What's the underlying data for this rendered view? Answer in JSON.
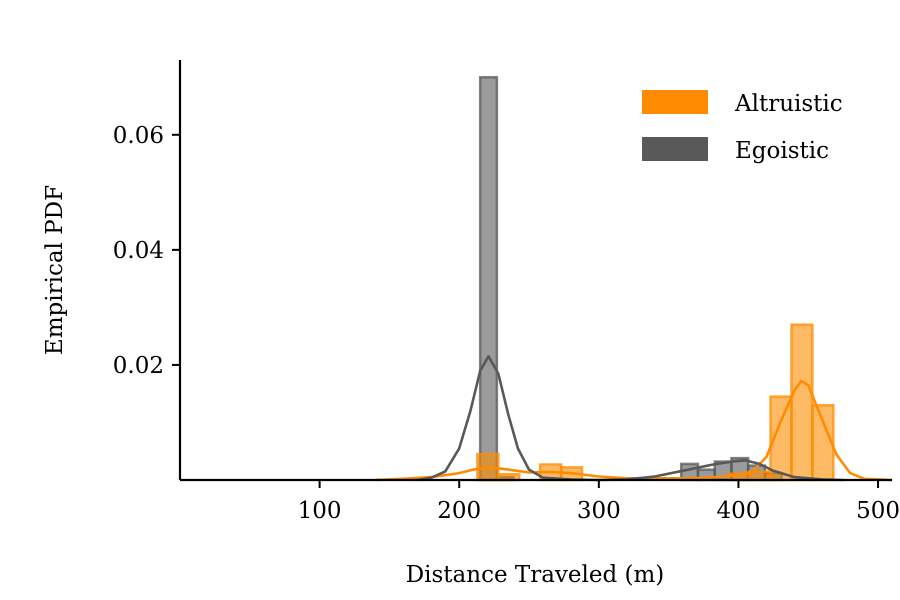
{
  "chart_data": {
    "type": "bar",
    "xlabel": "Distance Traveled (m)",
    "ylabel": "Empirical PDF",
    "xlim": [
      0,
      510
    ],
    "ylim": [
      0,
      0.073
    ],
    "xticks": [
      "100",
      "200",
      "300",
      "400",
      "500"
    ],
    "yticks": [
      "0.02",
      "0.04",
      "0.06"
    ],
    "grid": false,
    "legend_position": "top-right",
    "series": [
      {
        "name": "Altruistic",
        "color": "#ff8c00",
        "histogram": [
          {
            "x0": 213,
            "x1": 228,
            "value": 0.0045
          },
          {
            "x0": 228,
            "x1": 243,
            "value": 0.001
          },
          {
            "x0": 258,
            "x1": 273,
            "value": 0.0027
          },
          {
            "x0": 273,
            "x1": 288,
            "value": 0.0022
          },
          {
            "x0": 393,
            "x1": 408,
            "value": 0.0011
          },
          {
            "x0": 408,
            "x1": 423,
            "value": 0.0015
          },
          {
            "x0": 423,
            "x1": 438,
            "value": 0.0145
          },
          {
            "x0": 438,
            "x1": 453,
            "value": 0.027
          },
          {
            "x0": 453,
            "x1": 468,
            "value": 0.013
          }
        ],
        "kde": [
          [
            140,
            0
          ],
          [
            160,
            0.0002
          ],
          [
            180,
            0.0005
          ],
          [
            200,
            0.0012
          ],
          [
            210,
            0.0018
          ],
          [
            222,
            0.0022
          ],
          [
            235,
            0.0018
          ],
          [
            250,
            0.0013
          ],
          [
            265,
            0.0014
          ],
          [
            280,
            0.0012
          ],
          [
            300,
            0.0006
          ],
          [
            320,
            0.0003
          ],
          [
            340,
            0.0003
          ],
          [
            360,
            0.0003
          ],
          [
            380,
            0.0004
          ],
          [
            400,
            0.0009
          ],
          [
            410,
            0.0015
          ],
          [
            420,
            0.004
          ],
          [
            430,
            0.01
          ],
          [
            440,
            0.0155
          ],
          [
            445,
            0.0172
          ],
          [
            450,
            0.0165
          ],
          [
            460,
            0.0105
          ],
          [
            470,
            0.0045
          ],
          [
            480,
            0.0012
          ],
          [
            490,
            0.0002
          ],
          [
            510,
            0
          ]
        ]
      },
      {
        "name": "Egoistic",
        "color": "#595959",
        "histogram": [
          {
            "x0": 215,
            "x1": 227,
            "value": 0.07
          },
          {
            "x0": 227,
            "x1": 239,
            "value": 0.0005
          },
          {
            "x0": 359,
            "x1": 371,
            "value": 0.0028
          },
          {
            "x0": 371,
            "x1": 383,
            "value": 0.0018
          },
          {
            "x0": 383,
            "x1": 395,
            "value": 0.0032
          },
          {
            "x0": 395,
            "x1": 407,
            "value": 0.0038
          },
          {
            "x0": 407,
            "x1": 419,
            "value": 0.0025
          },
          {
            "x0": 419,
            "x1": 431,
            "value": 0.0012
          }
        ],
        "kde": [
          [
            170,
            0
          ],
          [
            180,
            0.0004
          ],
          [
            190,
            0.0015
          ],
          [
            200,
            0.0055
          ],
          [
            208,
            0.012
          ],
          [
            215,
            0.019
          ],
          [
            221,
            0.0215
          ],
          [
            228,
            0.0185
          ],
          [
            235,
            0.0115
          ],
          [
            242,
            0.0055
          ],
          [
            250,
            0.0018
          ],
          [
            260,
            0.0004
          ],
          [
            280,
            0.0001
          ],
          [
            300,
            0
          ],
          [
            320,
            0.0001
          ],
          [
            340,
            0.0006
          ],
          [
            360,
            0.0016
          ],
          [
            380,
            0.0026
          ],
          [
            395,
            0.0032
          ],
          [
            405,
            0.0034
          ],
          [
            415,
            0.0028
          ],
          [
            425,
            0.0016
          ],
          [
            440,
            0.0005
          ],
          [
            460,
            0.0001
          ],
          [
            475,
            0
          ]
        ]
      }
    ]
  }
}
